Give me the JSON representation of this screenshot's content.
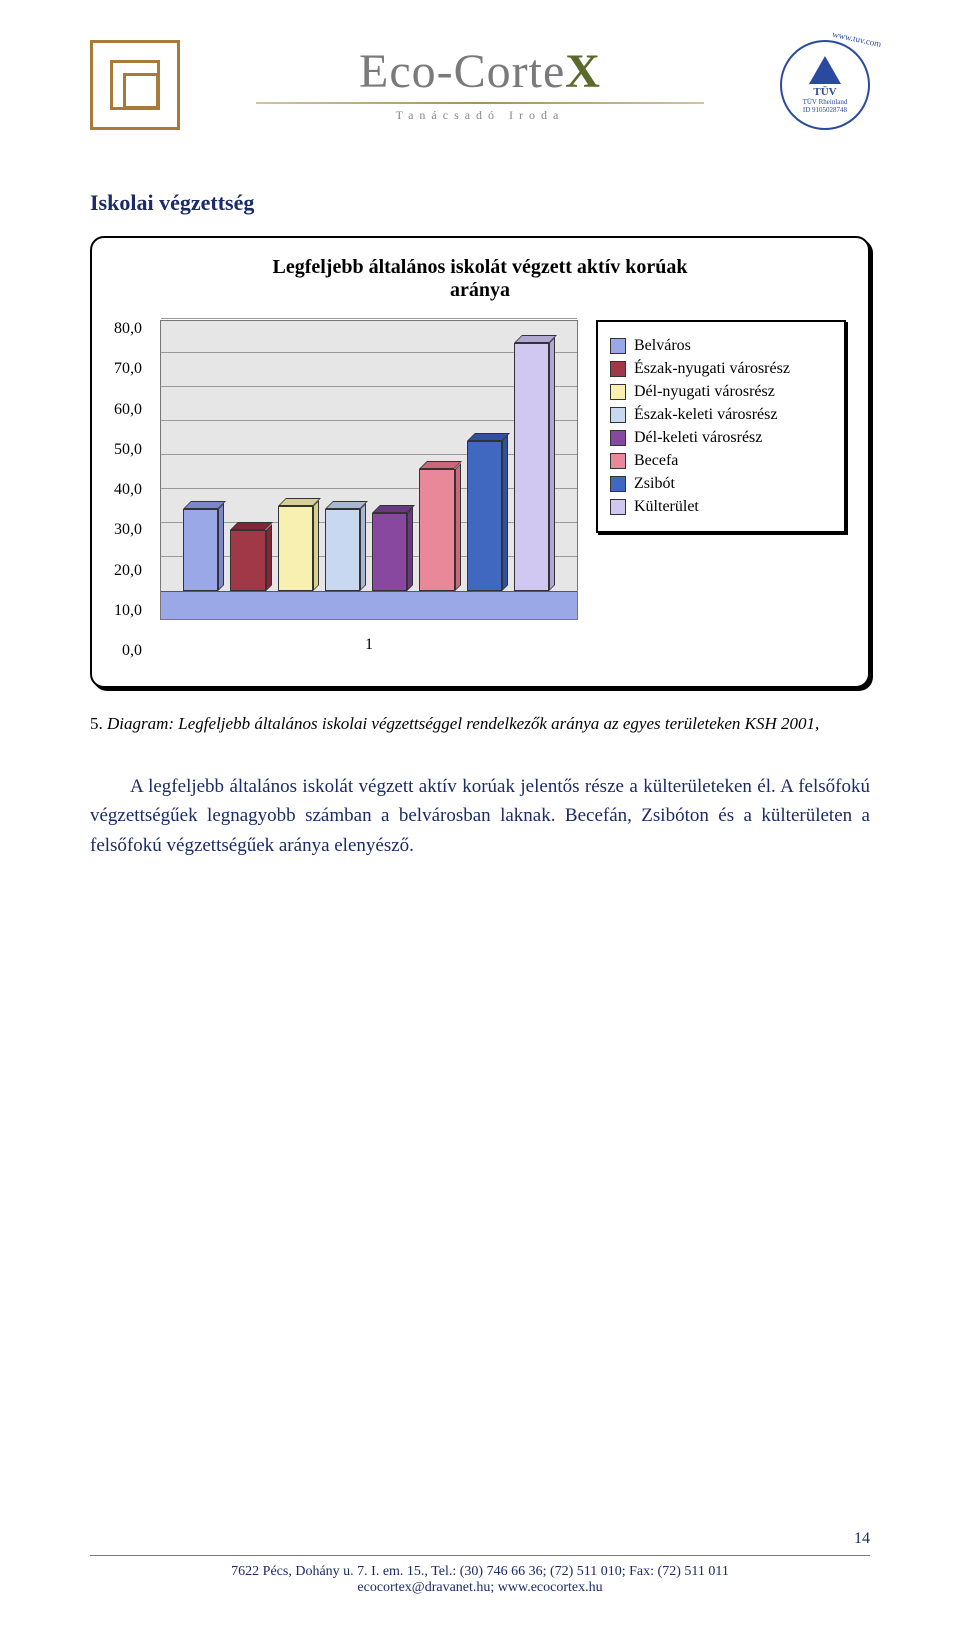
{
  "header": {
    "brand_main": "Eco-Corte",
    "brand_x": "X",
    "brand_sub": "Tanácsadó Iroda",
    "tuv_url": "www.tuv.com",
    "tuv_text": "TÜV",
    "tuv_sub": "TÜV Rheinland",
    "tuv_id": "ID 9105028748"
  },
  "section_title": "Iskolai végzettség",
  "chart": {
    "type": "bar",
    "title_line1": "Legfeljebb általános iskolát végzett aktív korúak",
    "title_line2": "aránya",
    "ylim": [
      0,
      80
    ],
    "ytick_step": 10,
    "yticks": [
      "80,0",
      "70,0",
      "60,0",
      "50,0",
      "40,0",
      "30,0",
      "20,0",
      "10,0",
      "0,0"
    ],
    "x_label": "1",
    "series": [
      {
        "label": "Belváros",
        "value": 24,
        "color": "#9aa8e8",
        "color_dark": "#7a88c8"
      },
      {
        "label": "Észak-nyugati városrész",
        "value": 18,
        "color": "#a03848",
        "color_dark": "#802838"
      },
      {
        "label": "Dél-nyugati városrész",
        "value": 25,
        "color": "#f8f0b0",
        "color_dark": "#d8d090"
      },
      {
        "label": "Észak-keleti városrész",
        "value": 24,
        "color": "#c8d8f0",
        "color_dark": "#a8b8d0"
      },
      {
        "label": "Dél-keleti városrész",
        "value": 23,
        "color": "#8848a0",
        "color_dark": "#683880"
      },
      {
        "label": "Becefa",
        "value": 36,
        "color": "#e88898",
        "color_dark": "#c86878"
      },
      {
        "label": "Zsibót",
        "value": 44,
        "color": "#4068c0",
        "color_dark": "#3050a0"
      },
      {
        "label": "Külterület",
        "value": 73,
        "color": "#d0c8f0",
        "color_dark": "#b0a8d0"
      }
    ],
    "panel_border_radius": 14,
    "background_color": "#e6e6e6",
    "floor_color": "#9aa8e8",
    "grid_color": "#9a9a9a",
    "title_fontsize": 20,
    "axis_fontsize": 16,
    "legend_fontsize": 16
  },
  "caption": {
    "num": "5.",
    "text": " Diagram: Legfeljebb általános iskolai végzettséggel rendelkezők aránya az egyes területeken KSH 2001,"
  },
  "paragraph": "A legfeljebb általános iskolát végzett aktív korúak jelentős része a külterületeken él. A felsőfokú végzettségűek legnagyobb számban a belvárosban laknak. Becefán, Zsibóton és a külterületen a felsőfokú végzettségűek aránya elenyésző.",
  "footer": {
    "line1": "7622 Pécs, Dohány u. 7. I. em. 15., Tel.: (30) 746 66 36; (72) 511 010; Fax: (72) 511 011",
    "line2": "ecocortex@dravanet.hu; www.ecocortex.hu",
    "page": "14"
  }
}
